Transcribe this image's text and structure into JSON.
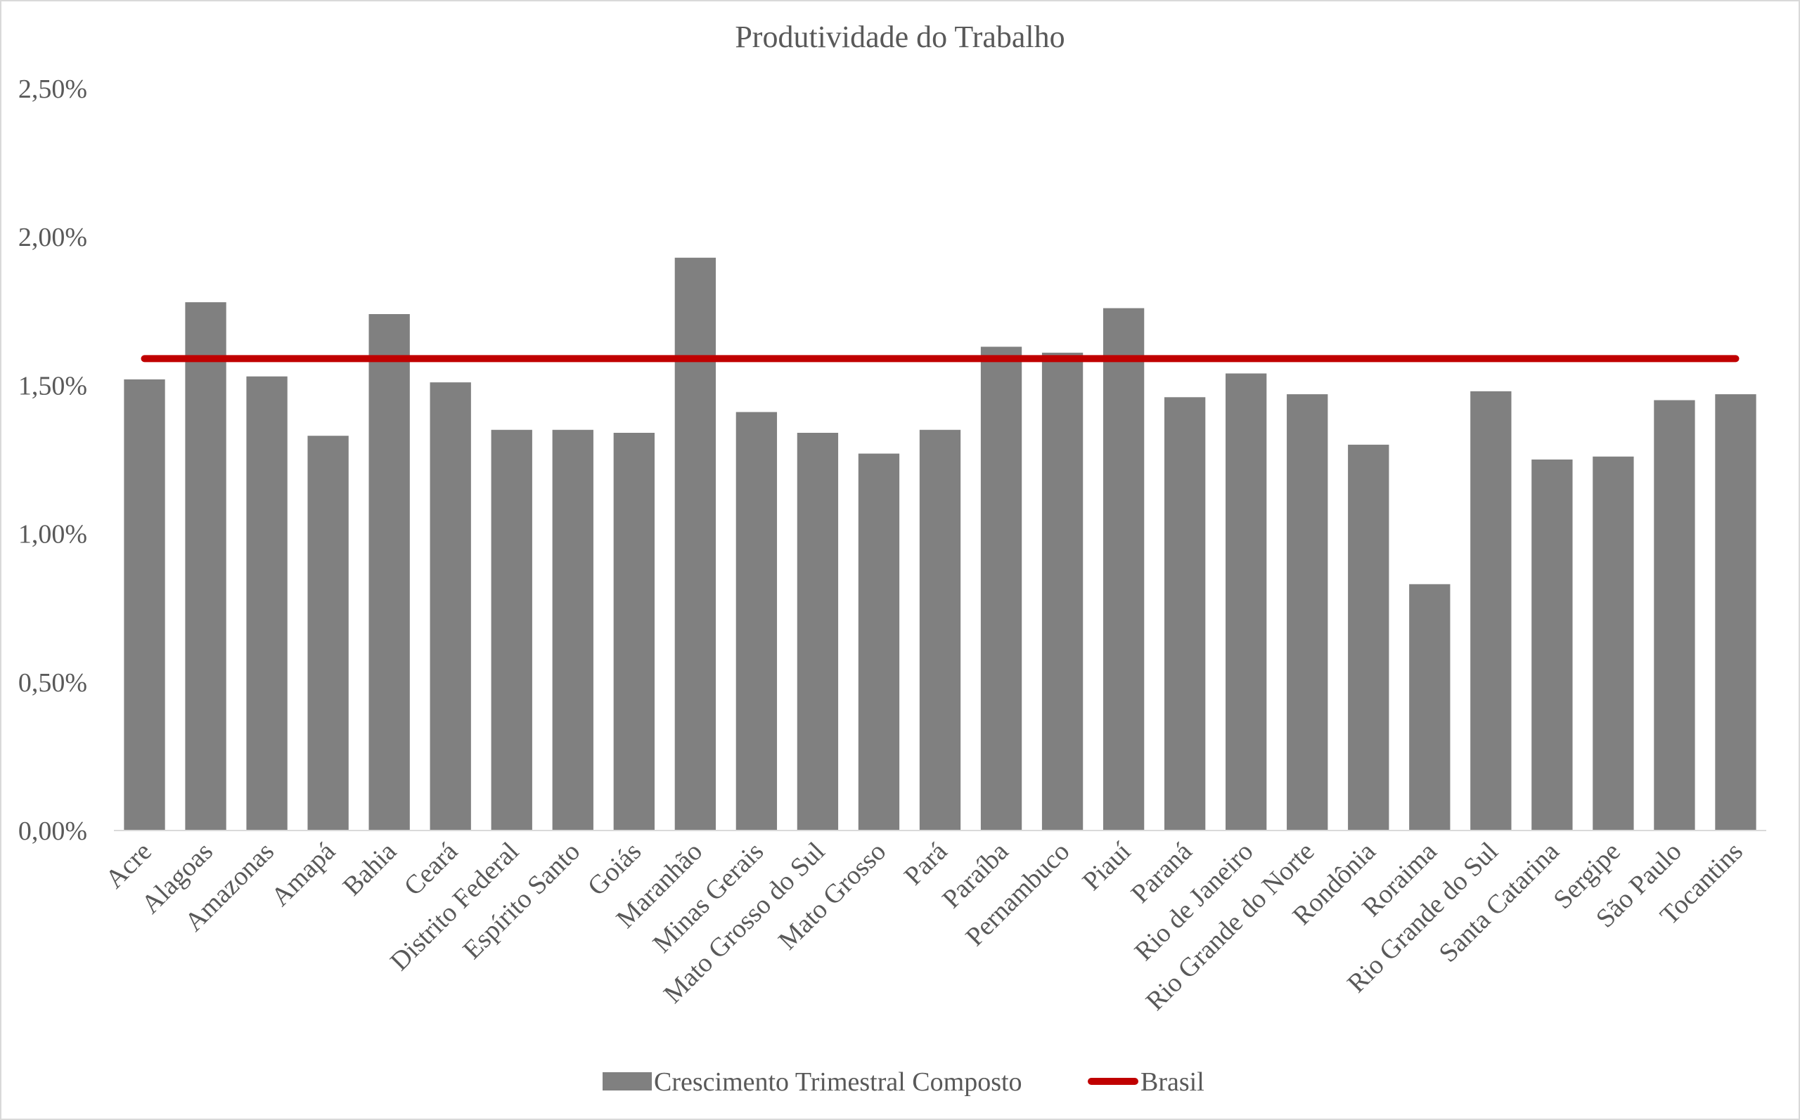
{
  "chart_data": {
    "type": "bar",
    "title": "Produtividade do Trabalho",
    "xlabel": "",
    "ylabel": "",
    "ylim": [
      0,
      0.025
    ],
    "yticks": [
      0,
      0.005,
      0.01,
      0.015,
      0.02,
      0.025
    ],
    "ytick_labels": [
      "0,00%",
      "0,50%",
      "1,00%",
      "1,50%",
      "2,00%",
      "2,50%"
    ],
    "grid": false,
    "legend_position": "bottom",
    "categories": [
      "Acre",
      "Alagoas",
      "Amazonas",
      "Amapá",
      "Bahia",
      "Ceará",
      "Distrito Federal",
      "Espírito Santo",
      "Goiás",
      "Maranhão",
      "Minas Gerais",
      "Mato Grosso do Sul",
      "Mato Grosso",
      "Pará",
      "Paraíba",
      "Pernambuco",
      "Piauí",
      "Paraná",
      "Rio de Janeiro",
      "Rio Grande do Norte",
      "Rondônia",
      "Roraima",
      "Rio Grande do Sul",
      "Santa Catarina",
      "Sergipe",
      "São Paulo",
      "Tocantins"
    ],
    "series": [
      {
        "name": "Crescimento Trimestral Composto",
        "type": "bar",
        "color": "#808080",
        "values": [
          0.0152,
          0.0178,
          0.0153,
          0.0133,
          0.0174,
          0.0151,
          0.0135,
          0.0135,
          0.0134,
          0.0193,
          0.0141,
          0.0134,
          0.0127,
          0.0135,
          0.0163,
          0.0161,
          0.0176,
          0.0146,
          0.0154,
          0.0147,
          0.013,
          0.0083,
          0.0148,
          0.0125,
          0.0126,
          0.0145,
          0.0147
        ]
      },
      {
        "name": "Brasil",
        "type": "line",
        "color": "#c00000",
        "value": 0.0159
      }
    ]
  }
}
